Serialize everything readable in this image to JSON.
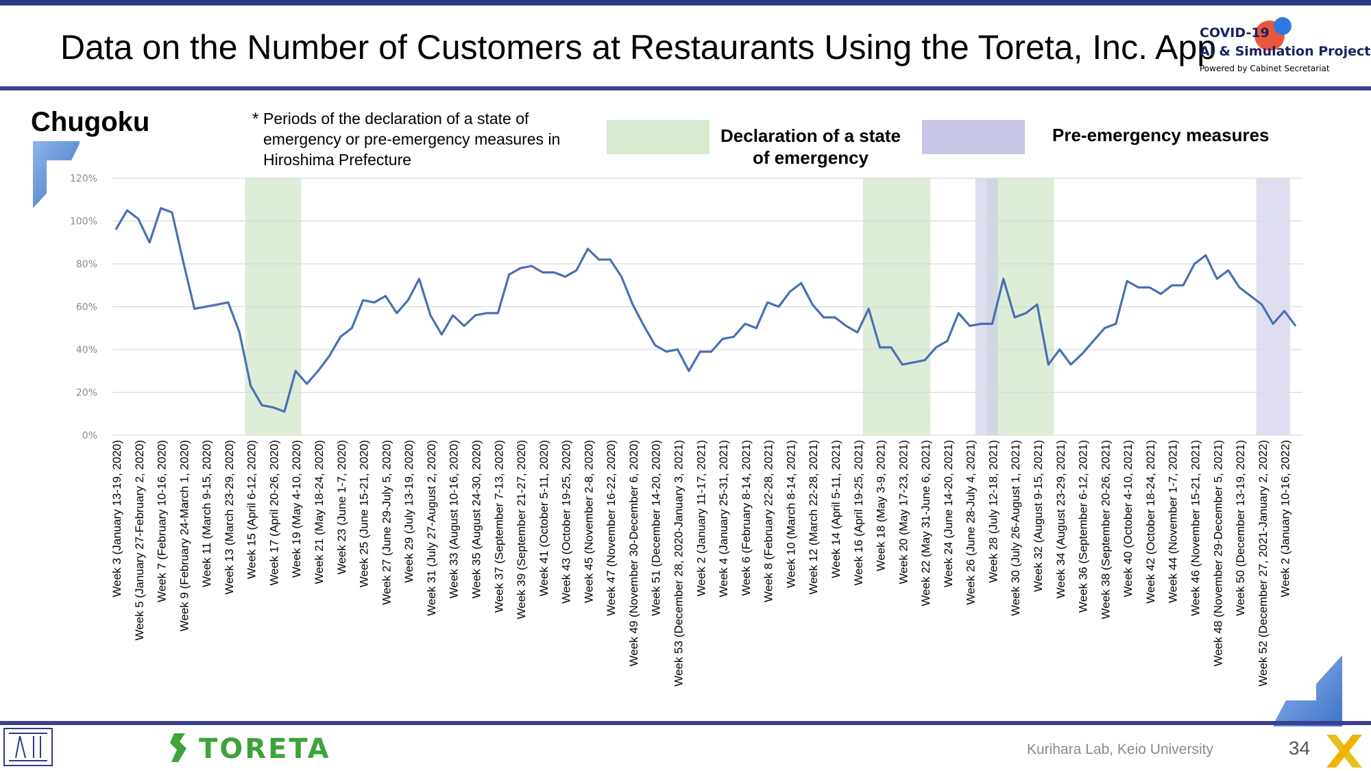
{
  "header": {
    "title": "Data on the Number of Customers at Restaurants Using the Toreta, Inc. App",
    "logo_line1": "COVID-19",
    "logo_line2": "AI & Simulation Project",
    "logo_line3": "Powered by Cabinet Secretariat"
  },
  "region": "Chugoku",
  "note": {
    "star": "*",
    "text": "Periods of the declaration of a state of emergency or pre-emergency measures in Hiroshima Prefecture"
  },
  "legend": {
    "emergency": "Declaration of a state of emergency",
    "pre_emergency": "Pre-emergency measures"
  },
  "colors": {
    "line": "#4a6fb5",
    "emergency": "#d7ead0",
    "pre_emergency": "#c8c8e6",
    "header_bar": "#2f3a86"
  },
  "footer": {
    "lab": "Kurihara Lab, Keio University",
    "page": "34",
    "brand": "TORETA"
  },
  "chart_data": {
    "type": "line",
    "ylim": [
      0,
      120
    ],
    "yticks": [
      "0%",
      "20%",
      "40%",
      "60%",
      "80%",
      "100%",
      "120%"
    ],
    "grid": true,
    "x_labels": [
      "Week 3 (January 13-19, 2020)",
      "Week 5 (January 27-February 2, 2020)",
      "Week 7 (February 10-16, 2020)",
      "Week 9 (February 24-March 1, 2020)",
      "Week 11 (March 9-15, 2020)",
      "Week 13 (March 23-29, 2020)",
      "Week 15 (April 6-12, 2020)",
      "Week 17 (April 20-26, 2020)",
      "Week 19 (May 4-10, 2020)",
      "Week 21 (May 18-24, 2020)",
      "Week 23 (June 1-7, 2020)",
      "Week 25 (June 15-21, 2020)",
      "Week 27 (June 29-July 5, 2020)",
      "Week 29 (July 13-19, 2020)",
      "Week 31 (July 27-August 2, 2020)",
      "Week 33 (August 10-16, 2020)",
      "Week 35 (August 24-30, 2020)",
      "Week 37 (September 7-13, 2020)",
      "Week 39 (September 21-27, 2020)",
      "Week 41 (October 5-11, 2020)",
      "Week 43 (October 19-25, 2020)",
      "Week 45 (November 2-8, 2020)",
      "Week 47 (November 16-22, 2020)",
      "Week 49 (November 30-December 6, 2020)",
      "Week 51 (December 14-20, 2020)",
      "Week 53 (December 28, 2020-January 3, 2021)",
      "Week 2 (January 11-17, 2021)",
      "Week 4 (January 25-31, 2021)",
      "Week 6 (February 8-14, 2021)",
      "Week 8 (February 22-28, 2021)",
      "Week 10 (March 8-14, 2021)",
      "Week 12 (March 22-28, 2021)",
      "Week 14 (April 5-11, 2021)",
      "Week 16 (April 19-25, 2021)",
      "Week 18 (May 3-9, 2021)",
      "Week 20 (May 17-23, 2021)",
      "Week 22 (May 31-June 6, 2021)",
      "Week 24 (June 14-20, 2021)",
      "Week 26 (June 28-July 4, 2021)",
      "Week 28 (July 12-18, 2021)",
      "Week 30 (July 26-August 1, 2021)",
      "Week 32 (August 9-15, 2021)",
      "Week 34 (August 23-29, 2021)",
      "Week 36 (September 6-12, 2021)",
      "Week 38 (September 20-26, 2021)",
      "Week 40 (October 4-10, 2021)",
      "Week 42 (October 18-24, 2021)",
      "Week 44 (November 1-7, 2021)",
      "Week 46 (November 15-21, 2021)",
      "Week 48 (November 29-December 5, 2021)",
      "Week 50 (December 13-19, 2021)",
      "Week 52 (December 27, 2021-January 2, 2022)",
      "Week 2 (January 10-16, 2022)"
    ],
    "series": [
      {
        "values": [
          96,
          105,
          101,
          90,
          106,
          104,
          81,
          59,
          60,
          61,
          62,
          48,
          23,
          14,
          13,
          11,
          30,
          24,
          30,
          37,
          46,
          50,
          63,
          62,
          65,
          57,
          63,
          73,
          56,
          47,
          56,
          51,
          56,
          57,
          57,
          75,
          78,
          79,
          76,
          76,
          74,
          77,
          87,
          82,
          82,
          74,
          61,
          51,
          42,
          39,
          40,
          30,
          39,
          39,
          45,
          46,
          52,
          50,
          62,
          60,
          67,
          71,
          61,
          55,
          55,
          51,
          48,
          59,
          41,
          41,
          33,
          34,
          35,
          41,
          44,
          57,
          51,
          52,
          52,
          73,
          55,
          57,
          61,
          33,
          40,
          33,
          38,
          44,
          50,
          52,
          72,
          69,
          69,
          66,
          70,
          70,
          80,
          84,
          73,
          77,
          69,
          65,
          61,
          52,
          58,
          51
        ]
      }
    ],
    "emergency_periods": [
      [
        12,
        16
      ],
      [
        67,
        72
      ],
      [
        78,
        83
      ]
    ],
    "pre_emergency_periods": [
      [
        77,
        78
      ],
      [
        102,
        104
      ]
    ]
  }
}
